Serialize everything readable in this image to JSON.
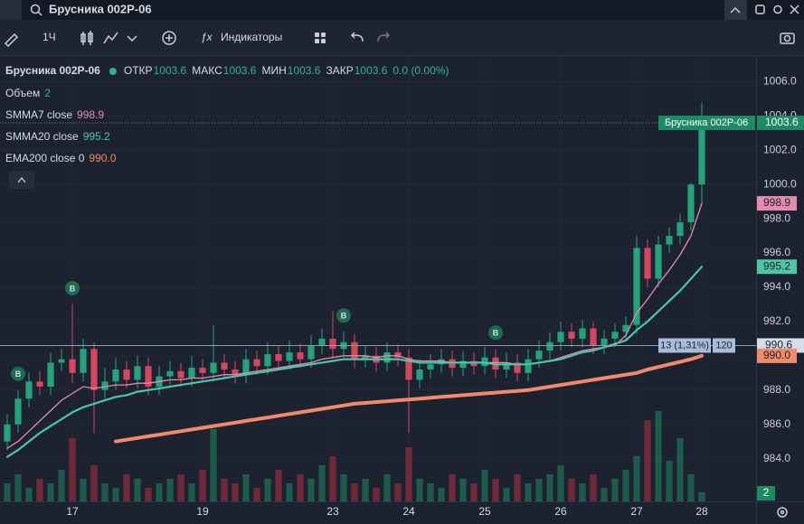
{
  "toolbar": {
    "search": "Брусника 002P-06",
    "interval": "1Ч",
    "indicators_button": "Индикаторы"
  },
  "legend": {
    "symbol": "Брусника 002P-06",
    "fields": [
      {
        "label": "ОТКР",
        "value": "1003.6"
      },
      {
        "label": "МАКС",
        "value": "1003.6"
      },
      {
        "label": "МИН",
        "value": "1003.6"
      },
      {
        "label": "ЗАКР",
        "value": "1003.6"
      }
    ],
    "change": "0.0 (0.00%)"
  },
  "chart_data": {
    "type": "candlestick",
    "xlim": [
      -0.667,
      69
    ],
    "xticks": [
      {
        "value": 6,
        "label": "17"
      },
      {
        "value": 18,
        "label": "19"
      },
      {
        "value": 30,
        "label": "23"
      },
      {
        "value": 37,
        "label": "24"
      },
      {
        "value": 44,
        "label": "25"
      },
      {
        "value": 51,
        "label": "26"
      },
      {
        "value": 58,
        "label": "27"
      },
      {
        "value": 64,
        "label": "28"
      }
    ],
    "ylim": [
      981.5,
      1007.5
    ],
    "yticks": [
      {
        "value": 984,
        "label": "984.0"
      },
      {
        "value": 986,
        "label": "986.0"
      },
      {
        "value": 988,
        "label": "988.0"
      },
      {
        "value": 990,
        "label": "990.0"
      },
      {
        "value": 992,
        "label": "992.0"
      },
      {
        "value": 994,
        "label": "994.0"
      },
      {
        "value": 996,
        "label": "996.0"
      },
      {
        "value": 998,
        "label": "998.0"
      },
      {
        "value": 1000,
        "label": "1000.0"
      },
      {
        "value": 1002,
        "label": "1002.0"
      },
      {
        "value": 1004,
        "label": "1004.0"
      },
      {
        "value": 1006,
        "label": "1006.0"
      }
    ],
    "grid": true,
    "up_color": "#26a17b",
    "down_color": "#d2485e",
    "candles": {
      "open": [
        985.0,
        986.0,
        987.5,
        988.5,
        988.2,
        989.6,
        989.8,
        989.0,
        990.4,
        988.0,
        988.5,
        989.2,
        988.6,
        989.4,
        988.2,
        988.8,
        989.1,
        988.7,
        989.3,
        989.0,
        989.6,
        989.2,
        988.9,
        989.8,
        989.4,
        990.1,
        989.7,
        990.2,
        989.8,
        990.6,
        991.0,
        990.4,
        990.8,
        989.8,
        990.0,
        989.6,
        990.2,
        989.9,
        988.6,
        989.2,
        989.5,
        989.8,
        989.3,
        989.7,
        989.4,
        989.9,
        989.2,
        989.6,
        989.0,
        989.8,
        990.3,
        990.8,
        991.4,
        991.0,
        991.6,
        990.6,
        991.0,
        991.4,
        991.8,
        996.3,
        994.5,
        996.5,
        997.0,
        997.8,
        1000.0
      ],
      "high": [
        986.6,
        988.0,
        989.0,
        989.1,
        990.2,
        990.4,
        993.0,
        991.0,
        990.8,
        989.3,
        989.9,
        989.7,
        990.0,
        989.9,
        989.4,
        989.7,
        989.6,
        990.0,
        989.8,
        991.8,
        990.1,
        989.7,
        990.4,
        990.3,
        990.8,
        990.6,
        990.9,
        990.7,
        991.2,
        991.6,
        992.6,
        991.4,
        991.3,
        990.6,
        990.5,
        990.8,
        990.7,
        990.4,
        989.8,
        990.1,
        990.4,
        990.3,
        990.3,
        990.2,
        990.5,
        990.4,
        990.2,
        990.1,
        990.4,
        990.9,
        991.4,
        992.0,
        991.9,
        992.1,
        992.0,
        991.5,
        991.9,
        992.3,
        997.0,
        996.8,
        997.0,
        997.5,
        998.3,
        1000.1,
        1004.8
      ],
      "low": [
        984.5,
        985.5,
        987.0,
        987.7,
        987.7,
        989.1,
        988.4,
        988.5,
        985.5,
        987.5,
        988.0,
        988.1,
        988.1,
        987.7,
        987.7,
        988.3,
        988.2,
        988.2,
        988.5,
        988.5,
        988.7,
        988.4,
        988.4,
        988.9,
        988.9,
        989.2,
        989.2,
        989.3,
        989.3,
        990.1,
        989.9,
        989.9,
        989.3,
        989.3,
        989.1,
        989.1,
        989.4,
        985.5,
        988.1,
        988.7,
        989.0,
        988.8,
        988.8,
        988.9,
        988.9,
        988.7,
        988.7,
        988.5,
        988.5,
        989.3,
        989.8,
        990.3,
        990.5,
        990.5,
        990.1,
        990.1,
        990.5,
        990.9,
        991.3,
        994.0,
        994.0,
        996.0,
        996.5,
        997.3,
        998.8
      ],
      "close": [
        986.0,
        987.5,
        988.5,
        988.2,
        989.6,
        989.8,
        989.0,
        990.4,
        988.0,
        988.5,
        989.2,
        988.6,
        989.4,
        988.2,
        988.8,
        989.1,
        988.7,
        989.3,
        989.0,
        989.6,
        989.2,
        988.9,
        989.8,
        989.4,
        990.1,
        989.7,
        990.2,
        989.8,
        990.6,
        991.0,
        990.4,
        990.8,
        989.8,
        990.0,
        989.6,
        990.2,
        989.9,
        988.6,
        989.2,
        989.5,
        989.8,
        989.3,
        989.7,
        989.4,
        989.9,
        989.2,
        989.6,
        989.0,
        989.8,
        990.3,
        990.8,
        991.4,
        991.0,
        991.6,
        990.6,
        991.0,
        991.4,
        991.8,
        996.3,
        994.5,
        996.5,
        997.0,
        997.8,
        1000.0,
        1003.6
      ]
    },
    "volume": {
      "name": "Объем",
      "value_label": "2",
      "ylim": [
        0,
        40
      ],
      "values": [
        4,
        6,
        3,
        5,
        4,
        7,
        14,
        5,
        8,
        4,
        3,
        6,
        5,
        3,
        4,
        5,
        6,
        4,
        7,
        16,
        5,
        4,
        6,
        3,
        5,
        7,
        4,
        6,
        5,
        8,
        10,
        6,
        4,
        5,
        3,
        6,
        4,
        12,
        5,
        4,
        3,
        6,
        5,
        4,
        7,
        5,
        3,
        6,
        4,
        5,
        6,
        8,
        5,
        4,
        6,
        3,
        5,
        7,
        10,
        18,
        20,
        9,
        14,
        6,
        2
      ]
    },
    "series": [
      {
        "name": "SMMA7 close",
        "color": "#e68bb0",
        "value_label": "998.9",
        "width": 1.3,
        "values": [
          984.6,
          985.0,
          985.6,
          986.2,
          986.8,
          987.4,
          987.8,
          988.2,
          988.1,
          988.2,
          988.3,
          988.3,
          988.4,
          988.4,
          988.5,
          988.6,
          988.6,
          988.7,
          988.7,
          988.8,
          988.9,
          988.9,
          989.0,
          989.1,
          989.2,
          989.3,
          989.4,
          989.5,
          989.6,
          989.8,
          989.9,
          990.0,
          990.0,
          990.0,
          989.9,
          990.0,
          990.0,
          989.8,
          989.7,
          989.7,
          989.7,
          989.6,
          989.6,
          989.6,
          989.6,
          989.6,
          989.6,
          989.5,
          989.5,
          989.6,
          989.7,
          989.9,
          990.1,
          990.3,
          990.4,
          990.5,
          990.6,
          991.2,
          992.5,
          993.3,
          994.2,
          995.0,
          995.9,
          997.0,
          998.9
        ]
      },
      {
        "name": "SMMA20 close",
        "color": "#4fc5a8",
        "value_label": "995.2",
        "width": 2.2,
        "values": [
          984.1,
          984.5,
          985.0,
          985.5,
          985.9,
          986.3,
          986.7,
          987.0,
          987.2,
          987.4,
          987.6,
          987.7,
          987.9,
          988.0,
          988.1,
          988.2,
          988.3,
          988.4,
          988.5,
          988.6,
          988.7,
          988.8,
          988.9,
          989.0,
          989.1,
          989.2,
          989.3,
          989.4,
          989.5,
          989.6,
          989.7,
          989.8,
          989.8,
          989.8,
          989.8,
          989.8,
          989.8,
          989.7,
          989.6,
          989.6,
          989.6,
          989.6,
          989.6,
          989.6,
          989.6,
          989.5,
          989.5,
          989.5,
          989.5,
          989.6,
          989.7,
          989.8,
          990.0,
          990.2,
          990.3,
          990.5,
          990.7,
          990.9,
          991.5,
          992.0,
          992.6,
          993.2,
          993.8,
          994.5,
          995.2
        ]
      },
      {
        "name": "EMA200 close 0",
        "color": "#f08a6b",
        "value_label": "990.0",
        "width": 4,
        "values": [
          null,
          null,
          null,
          null,
          null,
          null,
          null,
          null,
          null,
          null,
          985.0,
          985.1,
          985.2,
          985.3,
          985.4,
          985.5,
          985.6,
          985.7,
          985.8,
          985.9,
          986.0,
          986.1,
          986.2,
          986.3,
          986.4,
          986.5,
          986.6,
          986.7,
          986.8,
          986.9,
          987.0,
          987.1,
          987.2,
          987.25,
          987.3,
          987.35,
          987.4,
          987.45,
          987.5,
          987.55,
          987.6,
          987.65,
          987.7,
          987.75,
          987.8,
          987.85,
          987.9,
          987.95,
          988.0,
          988.1,
          988.2,
          988.3,
          988.4,
          988.5,
          988.6,
          988.7,
          988.8,
          988.9,
          989.0,
          989.2,
          989.35,
          989.5,
          989.65,
          989.8,
          990.0
        ]
      }
    ],
    "last_price": {
      "name": "Брусника 002P-06",
      "value": 1003.6,
      "label": "1003.6",
      "color": "#1e8a63"
    },
    "price_line": {
      "value": 990.6,
      "label": "990.6",
      "info": "13 (1,31%)",
      "count": "120"
    },
    "markers": [
      {
        "index": 1,
        "label": "B"
      },
      {
        "index": 6,
        "label": "B"
      },
      {
        "index": 31,
        "label": "B"
      },
      {
        "index": 45,
        "label": "B"
      }
    ]
  }
}
